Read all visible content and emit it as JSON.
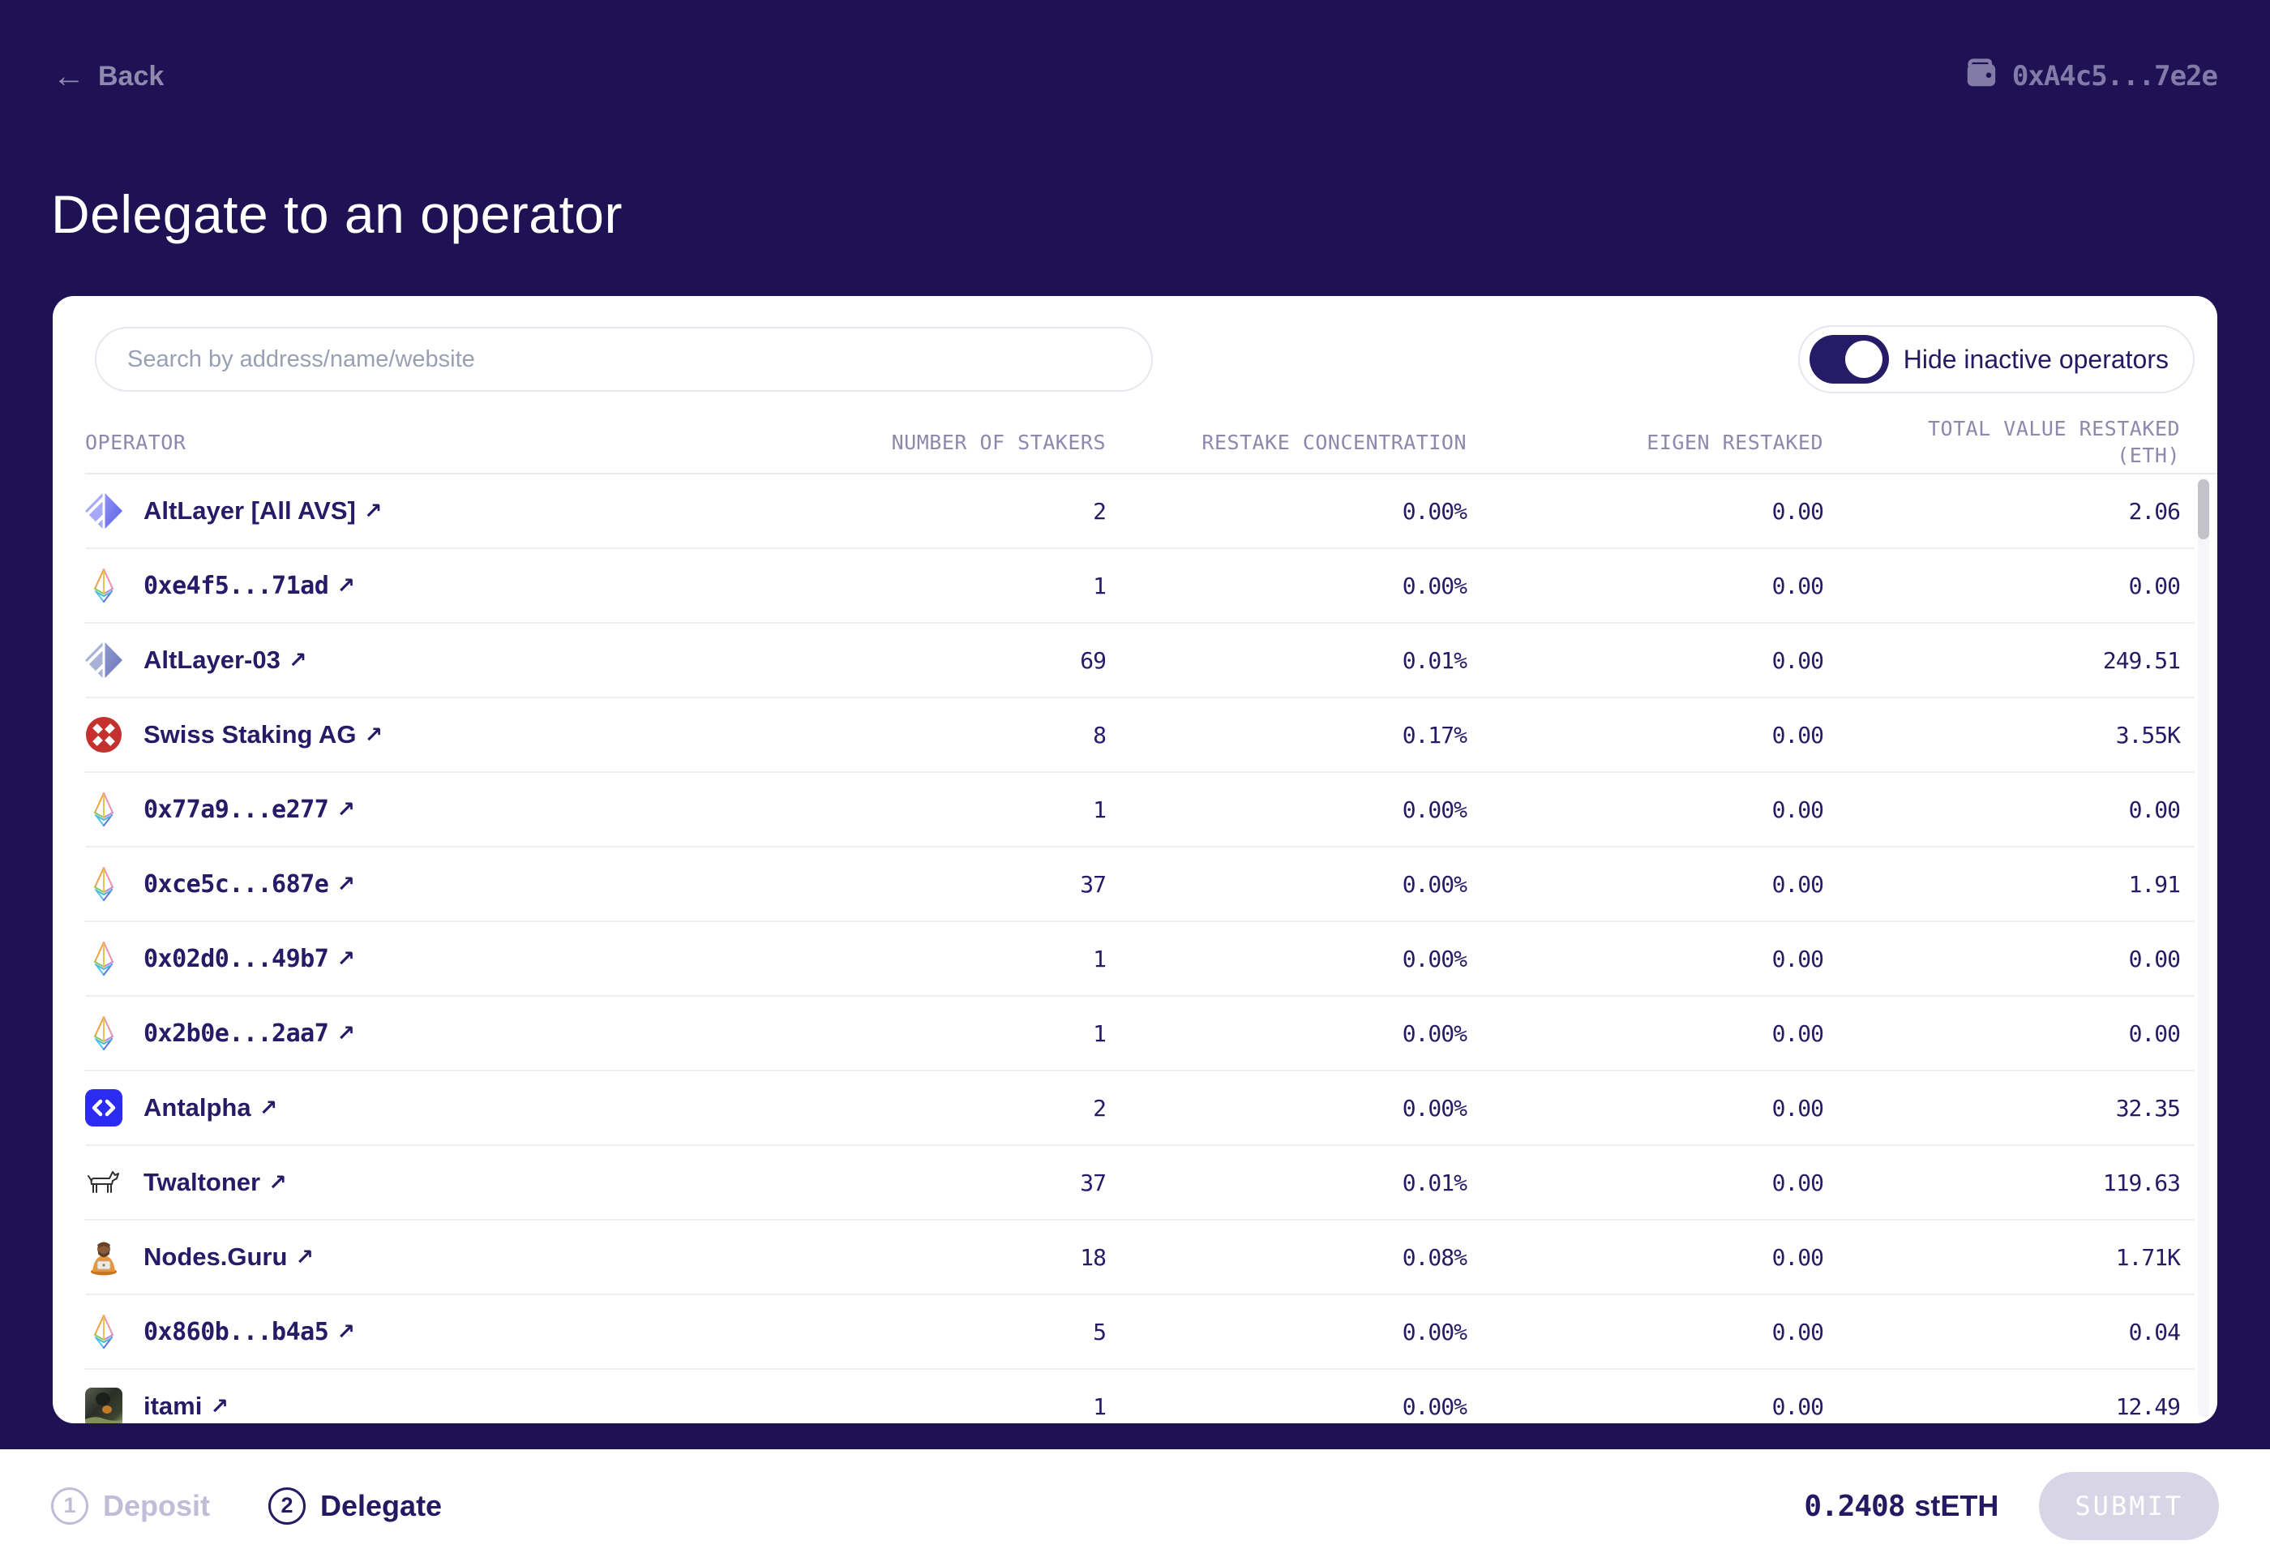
{
  "colors": {
    "background": "#1e1254",
    "accent_navy": "#241a63",
    "muted_lavender": "#8f89ae",
    "card": "#ffffff",
    "swiss_red": "#c4302e",
    "antalpha_blue": "#2b2bf2",
    "disabled_button": "#d8d5e6"
  },
  "header": {
    "back_label": "Back",
    "wallet_address": "0xA4c5...7e2e"
  },
  "page_title": "Delegate to an operator",
  "panel": {
    "search_placeholder": "Search by address/name/website",
    "search_value": "",
    "toggle_label": "Hide inactive operators",
    "toggle_on": true
  },
  "table": {
    "columns": [
      {
        "label": "OPERATOR"
      },
      {
        "label": "NUMBER OF STAKERS"
      },
      {
        "label": "RESTAKE CONCENTRATION"
      },
      {
        "label": "EIGEN RESTAKED"
      },
      {
        "label": "TOTAL VALUE RESTAKED",
        "sub": "(ETH)"
      }
    ],
    "rows": [
      {
        "name": "AltLayer [All AVS]",
        "icon": "altlayer",
        "mono": false,
        "stakers": "2",
        "concentration": "0.00%",
        "eigen": "0.00",
        "total": "2.06"
      },
      {
        "name": "0xe4f5...71ad",
        "icon": "eth",
        "mono": true,
        "stakers": "1",
        "concentration": "0.00%",
        "eigen": "0.00",
        "total": "0.00"
      },
      {
        "name": "AltLayer-03",
        "icon": "altlayer2",
        "mono": false,
        "stakers": "69",
        "concentration": "0.01%",
        "eigen": "0.00",
        "total": "249.51"
      },
      {
        "name": "Swiss Staking AG",
        "icon": "swiss",
        "mono": false,
        "stakers": "8",
        "concentration": "0.17%",
        "eigen": "0.00",
        "total": "3.55K"
      },
      {
        "name": "0x77a9...e277",
        "icon": "eth",
        "mono": true,
        "stakers": "1",
        "concentration": "0.00%",
        "eigen": "0.00",
        "total": "0.00"
      },
      {
        "name": "0xce5c...687e",
        "icon": "eth",
        "mono": true,
        "stakers": "37",
        "concentration": "0.00%",
        "eigen": "0.00",
        "total": "1.91"
      },
      {
        "name": "0x02d0...49b7",
        "icon": "eth",
        "mono": true,
        "stakers": "1",
        "concentration": "0.00%",
        "eigen": "0.00",
        "total": "0.00"
      },
      {
        "name": "0x2b0e...2aa7",
        "icon": "eth",
        "mono": true,
        "stakers": "1",
        "concentration": "0.00%",
        "eigen": "0.00",
        "total": "0.00"
      },
      {
        "name": "Antalpha",
        "icon": "antalpha",
        "mono": false,
        "stakers": "2",
        "concentration": "0.00%",
        "eigen": "0.00",
        "total": "32.35"
      },
      {
        "name": "Twaltoner",
        "icon": "twaltoner",
        "mono": false,
        "stakers": "37",
        "concentration": "0.01%",
        "eigen": "0.00",
        "total": "119.63"
      },
      {
        "name": "Nodes.Guru",
        "icon": "nodesguru",
        "mono": false,
        "stakers": "18",
        "concentration": "0.08%",
        "eigen": "0.00",
        "total": "1.71K"
      },
      {
        "name": "0x860b...b4a5",
        "icon": "eth",
        "mono": true,
        "stakers": "5",
        "concentration": "0.00%",
        "eigen": "0.00",
        "total": "0.04"
      },
      {
        "name": "itami",
        "icon": "itami",
        "mono": false,
        "stakers": "1",
        "concentration": "0.00%",
        "eigen": "0.00",
        "total": "12.49"
      }
    ]
  },
  "footer": {
    "steps": [
      {
        "number": "1",
        "label": "Deposit",
        "active": false
      },
      {
        "number": "2",
        "label": "Delegate",
        "active": true
      }
    ],
    "amount": {
      "value": "0.2408",
      "unit": "stETH"
    },
    "submit_label": "SUBMIT",
    "submit_enabled": false
  }
}
